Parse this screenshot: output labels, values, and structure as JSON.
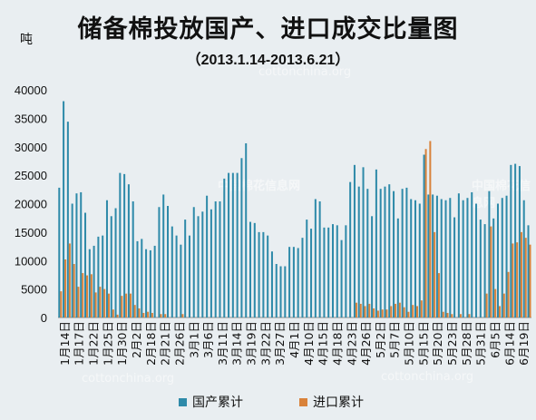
{
  "chart_data": {
    "type": "bar",
    "title": "储备棉投放国产、进口成交比量图",
    "subtitle": "（2013.1.14-2013.6.21）",
    "ylabel": "吨",
    "ylim": [
      0,
      40000
    ],
    "yticks": [
      0,
      5000,
      10000,
      15000,
      20000,
      25000,
      30000,
      35000,
      40000
    ],
    "grid": false,
    "legend_position": "bottom",
    "colors": {
      "domestic": "#2e8aa9",
      "import": "#d9823a"
    },
    "tick_labels": [
      "1月14日",
      "1月17日",
      "1月22日",
      "1月25日",
      "1月30日",
      "2月2日",
      "2月18日",
      "2月21日",
      "2月26日",
      "3月1日",
      "3月6日",
      "3月11日",
      "3月14日",
      "3月19日",
      "3月22日",
      "3月27日",
      "4月1日",
      "4月10日",
      "4月15日",
      "4月18日",
      "4月23日",
      "4月26日",
      "5月2日",
      "5月7日",
      "5月10日",
      "5月15日",
      "5月20日",
      "5月23日",
      "5月28日",
      "5月31日",
      "6月5日",
      "6月14日",
      "6月19日"
    ],
    "domestic": [
      22800,
      38000,
      34400,
      20000,
      21800,
      22000,
      18400,
      12000,
      12600,
      14200,
      14400,
      20600,
      17800,
      19200,
      25400,
      25200,
      23400,
      20400,
      13400,
      13800,
      12000,
      11800,
      12600,
      19400,
      21600,
      19600,
      16000,
      14400,
      12800,
      17200,
      14400,
      19400,
      17800,
      18600,
      21400,
      19000,
      20400,
      20400,
      24400,
      25400,
      25400,
      25400,
      28000,
      30600,
      16800,
      16600,
      15000,
      15000,
      14400,
      11600,
      9400,
      9000,
      9000,
      12400,
      12400,
      12200,
      14000,
      17200,
      15600,
      20800,
      20400,
      15800,
      15800,
      16400,
      16200,
      13600,
      16200,
      23800,
      26800,
      23000,
      26400,
      22600,
      17800,
      26000,
      22600,
      23000,
      23400,
      22200,
      17400,
      22600,
      22800,
      20800,
      20600,
      20000,
      28600,
      21600,
      21600,
      21400,
      20800,
      20600,
      21000,
      17600,
      21800,
      20600,
      21000,
      22000,
      20000,
      17200,
      16400,
      22200,
      17400,
      20000,
      21000,
      21400,
      26800,
      27000,
      26600,
      20600,
      16200
    ],
    "import": [
      4600,
      10200,
      13000,
      9400,
      5400,
      7800,
      7400,
      7600,
      4400,
      5400,
      5000,
      4200,
      1400,
      500,
      3800,
      4200,
      4200,
      2200,
      1600,
      800,
      1000,
      800,
      0,
      600,
      600,
      0,
      0,
      0,
      600,
      0,
      0,
      0,
      0,
      0,
      0,
      0,
      0,
      0,
      0,
      0,
      0,
      0,
      0,
      0,
      0,
      0,
      0,
      0,
      0,
      0,
      0,
      0,
      0,
      0,
      0,
      0,
      0,
      0,
      0,
      0,
      0,
      0,
      0,
      0,
      0,
      0,
      0,
      0,
      2600,
      2400,
      2000,
      2400,
      1600,
      1200,
      1400,
      1400,
      2000,
      2400,
      2600,
      1800,
      1000,
      2200,
      2000,
      3000,
      29600,
      31000,
      15000,
      7800,
      1000,
      800,
      600,
      0,
      600,
      0,
      600,
      0,
      0,
      0,
      4200,
      16000,
      5000,
      2000,
      4200,
      8000,
      13000,
      13200,
      15000,
      14000,
      12800
    ]
  },
  "watermarks": [
    "cottonchina.org",
    "中国棉花信息网",
    "cottonchina.org",
    "cottonchina.org",
    "中国棉花信息网"
  ],
  "legend": {
    "domestic_label": "国产累计",
    "import_label": "进口累计"
  }
}
